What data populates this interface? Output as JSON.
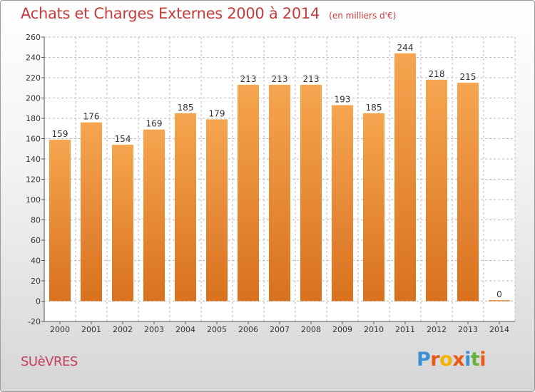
{
  "header": {
    "title": "Achats et Charges Externes 2000 à 2014",
    "unit": "(en milliers d'€)"
  },
  "footer": {
    "commune": "SUèVRES",
    "logo": [
      "P",
      "r",
      "o",
      "x",
      "i",
      "t",
      "i"
    ]
  },
  "colors": {
    "bar_top": "#f6a550",
    "bar_bottom": "#d9711e",
    "grid": "#bbbbbb",
    "title": "#c43c3c",
    "logo": [
      "#3b8fd6",
      "#e8591a",
      "#f2b400",
      "#e8591a",
      "#3b8fd6",
      "#6ab23c",
      "#e8591a"
    ]
  },
  "chart_data": {
    "type": "bar",
    "categories": [
      "2000",
      "2001",
      "2002",
      "2003",
      "2004",
      "2005",
      "2006",
      "2007",
      "2008",
      "2009",
      "2010",
      "2011",
      "2012",
      "2013",
      "2014"
    ],
    "values": [
      159,
      176,
      154,
      169,
      185,
      179,
      213,
      213,
      213,
      193,
      185,
      244,
      218,
      215,
      0
    ],
    "ylim": [
      -20,
      260
    ],
    "yticks": [
      -20,
      0,
      20,
      40,
      60,
      80,
      100,
      120,
      140,
      160,
      180,
      200,
      220,
      240,
      260
    ],
    "title": "Achats et Charges Externes 2000 à 2014",
    "grid": true
  }
}
